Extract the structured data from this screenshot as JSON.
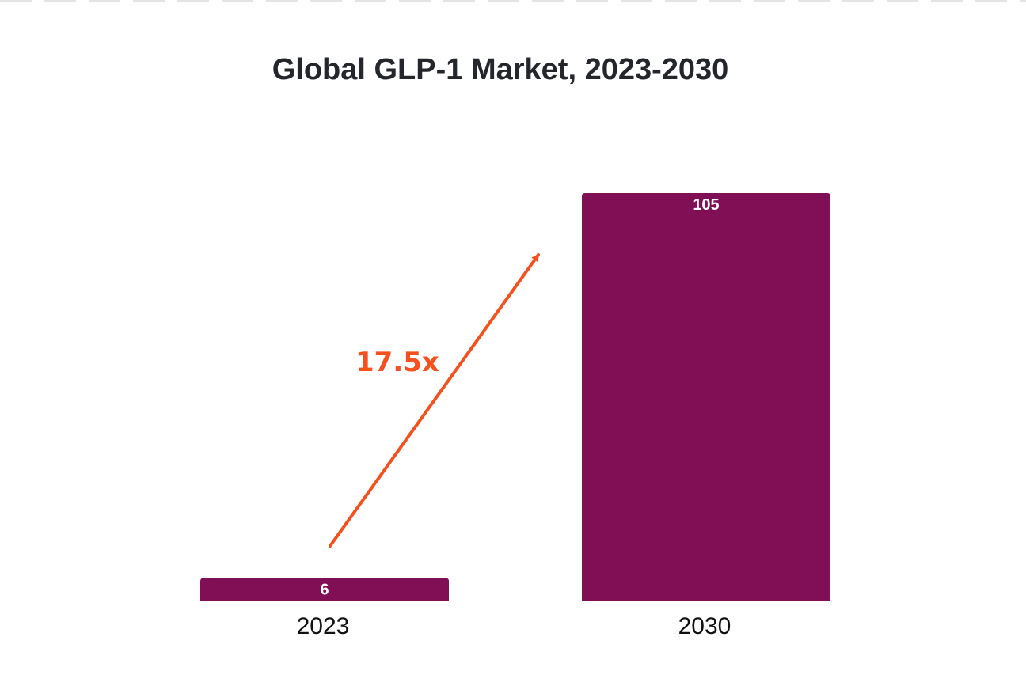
{
  "chart_data": {
    "type": "bar",
    "title": "Global GLP-1 Market, 2023-2030",
    "categories": [
      "2023",
      "2030"
    ],
    "values": [
      6,
      105
    ],
    "data_labels": [
      "6",
      "105"
    ],
    "xlabel": "",
    "ylabel": "",
    "ylim": [
      0,
      105
    ],
    "grid": false,
    "legend": "none",
    "bar_color": "#800f56",
    "annotation": {
      "text": "17.5x",
      "color": "#f4511e",
      "type": "arrow",
      "from_category": "2023",
      "to_category": "2030"
    }
  }
}
